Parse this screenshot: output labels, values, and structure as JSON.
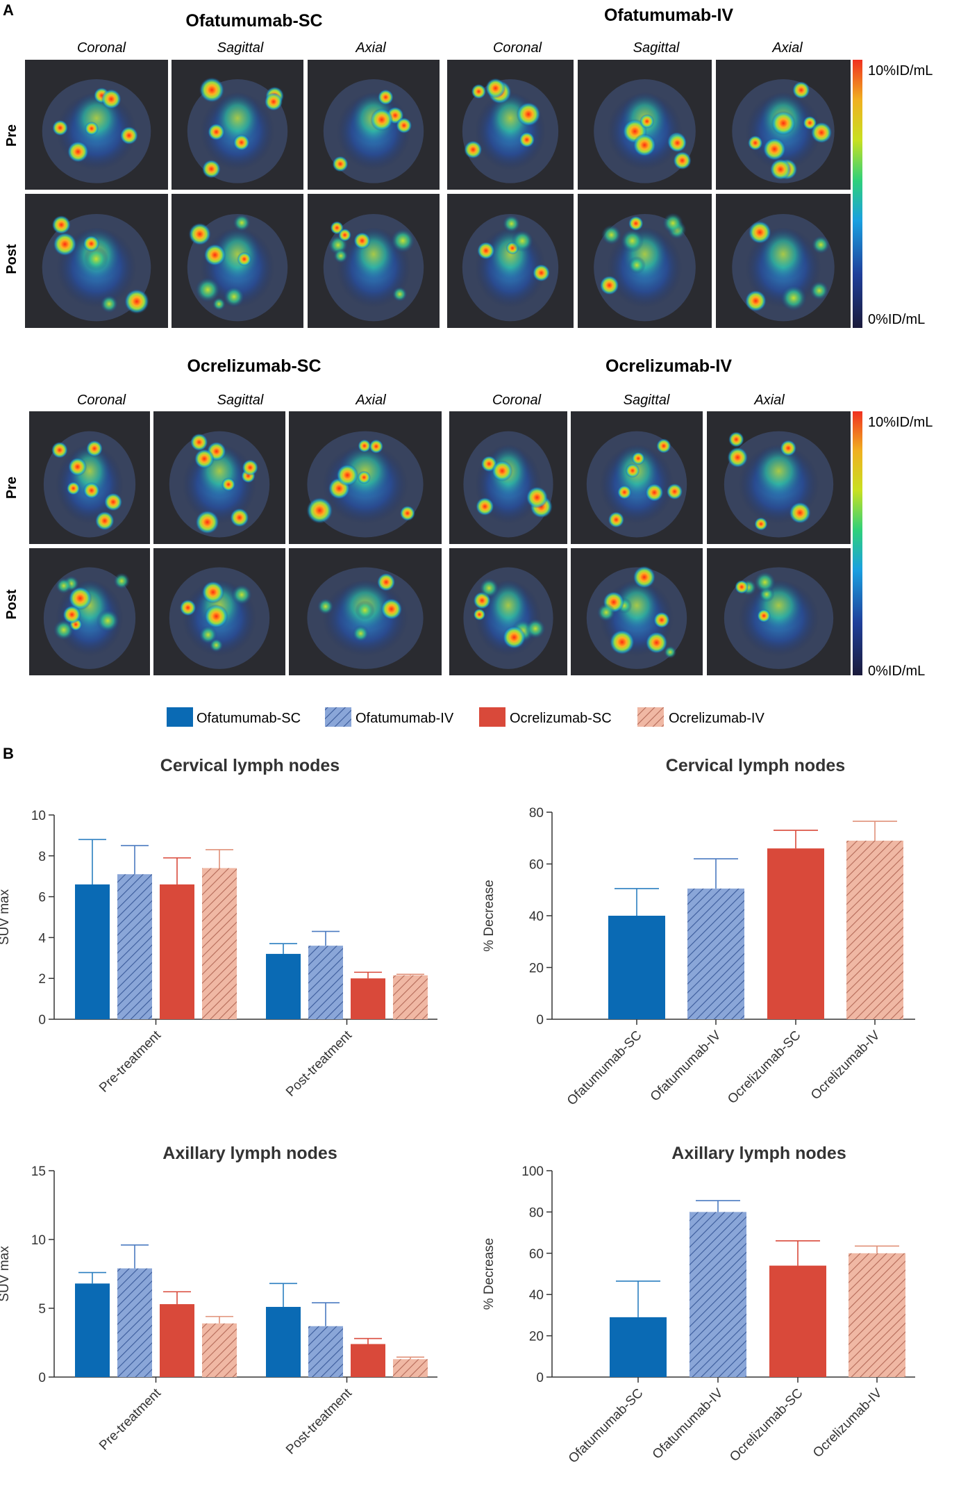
{
  "panel_letters": {
    "a": "A",
    "b": "B"
  },
  "images_section": {
    "groups": [
      {
        "name": "Ofatumumab-SC",
        "views": [
          "Coronal",
          "Sagittal",
          "Axial"
        ]
      },
      {
        "name": "Ofatumumab-IV",
        "views": [
          "Coronal",
          "Sagittal",
          "Axial"
        ]
      },
      {
        "name": "Ocrelizumab-SC",
        "views": [
          "Coronal",
          "Sagittal",
          "Axial"
        ]
      },
      {
        "name": "Ocrelizumab-IV",
        "views": [
          "Coronal",
          "Sagittal",
          "Axial"
        ]
      }
    ],
    "row_labels": [
      "Pre",
      "Post"
    ],
    "colorbar": {
      "max_label": "10%ID/mL",
      "min_label": "0%ID/mL",
      "colors": [
        "#1a1a3a",
        "#1f3f9a",
        "#1aa0e0",
        "#2fd07a",
        "#c8e020",
        "#f0b020",
        "#f03020"
      ]
    }
  },
  "legend": {
    "items": [
      {
        "label": "Ofatumumab-SC",
        "color": "#0a6ab4",
        "hatched": false
      },
      {
        "label": "Ofatumumab-IV",
        "color": "#7f9fd4",
        "hatched": true
      },
      {
        "label": "Ocrelizumab-SC",
        "color": "#d9493a",
        "hatched": false
      },
      {
        "label": "Ocrelizumab-IV",
        "color": "#eba890",
        "hatched": true
      }
    ]
  },
  "chart_data": [
    {
      "type": "bar",
      "title": "Cervical lymph nodes",
      "ylabel": "SUV max",
      "xlabel": "",
      "categories": [
        "Pre-treatment",
        "Post-treatment"
      ],
      "ylim": [
        0,
        10
      ],
      "yticks": [
        0,
        2,
        4,
        6,
        8,
        10
      ],
      "series": [
        {
          "name": "Ofatumumab-SC",
          "values": [
            6.6,
            3.2
          ],
          "errors": [
            2.2,
            0.5
          ]
        },
        {
          "name": "Ofatumumab-IV",
          "values": [
            7.1,
            3.6
          ],
          "errors": [
            1.4,
            0.7
          ]
        },
        {
          "name": "Ocrelizumab-SC",
          "values": [
            6.6,
            2.0
          ],
          "errors": [
            1.3,
            0.3
          ]
        },
        {
          "name": "Ocrelizumab-IV",
          "values": [
            7.4,
            2.15
          ],
          "errors": [
            0.9,
            0.05
          ]
        }
      ]
    },
    {
      "type": "bar",
      "title": "Cervical lymph nodes",
      "ylabel": "% Decrease",
      "xlabel": "",
      "categories": [
        "Ofatumumab-SC",
        "Ofatumumab-IV",
        "Ocrelizumab-SC",
        "Ocrelizumab-IV"
      ],
      "ylim": [
        0,
        80
      ],
      "yticks": [
        0,
        20,
        40,
        60,
        80
      ],
      "values": [
        40,
        50.5,
        66,
        69
      ],
      "errors": [
        10.5,
        11.5,
        7,
        7.5
      ]
    },
    {
      "type": "bar",
      "title": "Axillary lymph nodes",
      "ylabel": "SUV max",
      "xlabel": "",
      "categories": [
        "Pre-treatment",
        "Post-treatment"
      ],
      "ylim": [
        0,
        15
      ],
      "yticks": [
        0,
        5,
        10,
        15
      ],
      "series": [
        {
          "name": "Ofatumumab-SC",
          "values": [
            6.8,
            5.1
          ],
          "errors": [
            0.8,
            1.7
          ]
        },
        {
          "name": "Ofatumumab-IV",
          "values": [
            7.9,
            3.7
          ],
          "errors": [
            1.7,
            1.7
          ]
        },
        {
          "name": "Ocrelizumab-SC",
          "values": [
            5.3,
            2.4
          ],
          "errors": [
            0.9,
            0.4
          ]
        },
        {
          "name": "Ocrelizumab-IV",
          "values": [
            3.9,
            1.3
          ],
          "errors": [
            0.5,
            0.15
          ]
        }
      ]
    },
    {
      "type": "bar",
      "title": "Axillary lymph nodes",
      "ylabel": "% Decrease",
      "xlabel": "",
      "categories": [
        "Ofatumumab-SC",
        "Ofatumumab-IV",
        "Ocrelizumab-SC",
        "Ocrelizumab-IV"
      ],
      "ylim": [
        0,
        100
      ],
      "yticks": [
        0,
        20,
        40,
        60,
        80,
        100
      ],
      "values": [
        29,
        80,
        54,
        60
      ],
      "errors": [
        17.5,
        5.5,
        12,
        3.5
      ]
    }
  ]
}
